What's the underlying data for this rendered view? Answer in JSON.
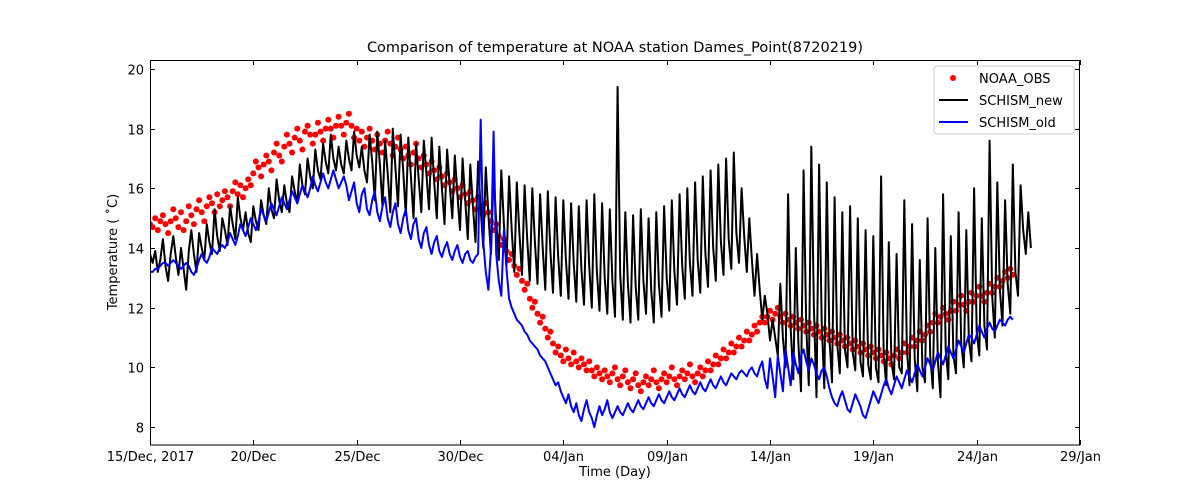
{
  "chart_data": {
    "type": "line",
    "title": "Comparison of temperature at NOAA station Dames_Point(8720219)",
    "xlabel": "Time (Day)",
    "ylabel": "Temperature ($^\\circ$C)",
    "ylabel_display": "Temperature ( ˚C)",
    "xlim": [
      0,
      45
    ],
    "ylim": [
      7.4,
      20.3
    ],
    "x_unit": "days since 15/Dec/2017",
    "grid": false,
    "legend_position": "top-right",
    "xticks": [
      {
        "value": 0,
        "label": "15/Dec, 2017"
      },
      {
        "value": 5,
        "label": "20/Dec"
      },
      {
        "value": 10,
        "label": "25/Dec"
      },
      {
        "value": 15,
        "label": "30/Dec"
      },
      {
        "value": 20,
        "label": "04/Jan"
      },
      {
        "value": 25,
        "label": "09/Jan"
      },
      {
        "value": 30,
        "label": "14/Jan"
      },
      {
        "value": 35,
        "label": "19/Jan"
      },
      {
        "value": 40,
        "label": "24/Jan"
      },
      {
        "value": 45,
        "label": "29/Jan"
      }
    ],
    "yticks": [
      {
        "value": 8,
        "label": "8"
      },
      {
        "value": 10,
        "label": "10"
      },
      {
        "value": 12,
        "label": "12"
      },
      {
        "value": 14,
        "label": "14"
      },
      {
        "value": 16,
        "label": "16"
      },
      {
        "value": 18,
        "label": "18"
      },
      {
        "value": 20,
        "label": "20"
      }
    ],
    "series": [
      {
        "name": "NOAA_OBS",
        "style": "scatter",
        "color": "#ff0000",
        "x_start": 0,
        "x_step": 0.125,
        "values": [
          14.8,
          14.7,
          15.0,
          14.6,
          14.9,
          15.1,
          14.8,
          14.5,
          14.9,
          15.3,
          15.0,
          14.7,
          15.2,
          14.6,
          14.9,
          15.4,
          15.1,
          14.8,
          15.3,
          15.6,
          15.2,
          14.9,
          15.4,
          15.7,
          15.5,
          15.2,
          15.8,
          15.4,
          15.6,
          15.9,
          15.7,
          15.4,
          15.9,
          16.2,
          15.8,
          16.1,
          15.7,
          16.0,
          16.3,
          16.1,
          16.5,
          16.9,
          16.7,
          16.4,
          16.8,
          17.1,
          16.9,
          16.6,
          17.2,
          17.5,
          17.1,
          16.9,
          17.4,
          17.8,
          17.5,
          17.2,
          17.7,
          18.0,
          17.6,
          17.3,
          17.9,
          18.1,
          17.8,
          17.5,
          17.8,
          18.2,
          17.9,
          17.6,
          18.0,
          18.3,
          18.0,
          17.7,
          18.1,
          18.4,
          18.1,
          17.8,
          18.2,
          18.5,
          18.1,
          17.7,
          18.0,
          17.6,
          17.9,
          17.4,
          17.7,
          18.0,
          17.6,
          17.3,
          17.8,
          17.5,
          17.2,
          17.6,
          17.9,
          17.5,
          17.1,
          17.4,
          17.7,
          17.3,
          17.0,
          17.4,
          17.1,
          16.8,
          17.2,
          17.5,
          17.0,
          16.7,
          17.1,
          16.8,
          16.5,
          16.9,
          16.6,
          16.3,
          16.7,
          16.4,
          16.1,
          16.5,
          16.2,
          15.9,
          16.3,
          16.0,
          15.7,
          16.1,
          15.8,
          15.5,
          15.9,
          15.6,
          15.3,
          15.7,
          15.4,
          15.1,
          15.5,
          15.2,
          14.9,
          14.6,
          14.8,
          14.4,
          14.1,
          14.3,
          13.9,
          13.6,
          13.8,
          13.4,
          13.1,
          13.3,
          12.9,
          12.6,
          12.8,
          12.3,
          12.0,
          12.2,
          11.8,
          11.5,
          11.7,
          11.3,
          11.0,
          11.2,
          10.8,
          10.5,
          10.7,
          10.4,
          10.2,
          10.6,
          10.3,
          10.1,
          10.5,
          10.2,
          10.0,
          10.3,
          10.1,
          9.9,
          10.2,
          9.9,
          9.7,
          10.0,
          9.8,
          9.6,
          9.9,
          9.7,
          9.5,
          9.8,
          10.0,
          9.6,
          9.4,
          9.7,
          9.9,
          9.5,
          9.3,
          9.6,
          9.8,
          9.4,
          9.2,
          9.5,
          9.7,
          9.4,
          9.6,
          9.9,
          9.5,
          9.3,
          9.6,
          9.8,
          9.5,
          9.7,
          10.0,
          9.6,
          9.4,
          9.7,
          9.9,
          9.6,
          9.8,
          10.1,
          9.7,
          9.5,
          9.8,
          10.0,
          9.7,
          9.9,
          10.2,
          9.9,
          10.1,
          10.4,
          10.1,
          10.3,
          10.6,
          10.3,
          10.5,
          10.8,
          10.5,
          10.7,
          11.0,
          10.7,
          10.9,
          11.2,
          10.9,
          11.1,
          11.4,
          11.2,
          11.5,
          11.7,
          11.5,
          11.7,
          11.9,
          11.6,
          11.8,
          12.0,
          11.7,
          11.5,
          11.8,
          11.6,
          11.4,
          11.7,
          11.5,
          11.3,
          11.6,
          11.4,
          11.2,
          11.5,
          11.3,
          11.1,
          11.4,
          11.2,
          11.0,
          11.3,
          11.1,
          10.9,
          11.2,
          11.0,
          10.8,
          11.1,
          10.9,
          10.7,
          11.0,
          10.8,
          10.6,
          10.9,
          10.7,
          10.5,
          10.8,
          10.6,
          10.4,
          10.7,
          10.5,
          10.3,
          10.6,
          10.4,
          10.2,
          10.5,
          10.3,
          10.1,
          10.4,
          10.6,
          10.3,
          10.5,
          10.8,
          10.5,
          10.7,
          11.0,
          10.7,
          10.9,
          11.2,
          10.9,
          11.1,
          11.4,
          11.2,
          11.5,
          11.8,
          11.5,
          11.7,
          12.0,
          11.8,
          11.6,
          11.9,
          12.2,
          11.9,
          12.1,
          12.4,
          12.1,
          11.9,
          12.2,
          12.5,
          12.2,
          12.4,
          12.7,
          12.4,
          12.2,
          12.5,
          12.8,
          12.5,
          12.7,
          13.0,
          12.7,
          12.9,
          13.2,
          13.0,
          13.3,
          13.1
        ],
        "note": "values sampled every 0.125 day from day 0"
      },
      {
        "name": "SCHISM_new",
        "style": "line",
        "color": "#000000",
        "x_start": 0,
        "x_step": 0.125,
        "values": [
          13.8,
          13.5,
          13.9,
          13.2,
          13.6,
          14.3,
          13.4,
          12.9,
          13.8,
          14.4,
          13.7,
          13.1,
          14.0,
          13.3,
          12.6,
          13.9,
          14.6,
          13.8,
          13.2,
          14.5,
          14.0,
          13.6,
          14.8,
          14.2,
          13.8,
          15.3,
          14.4,
          13.9,
          15.0,
          14.6,
          14.1,
          15.4,
          14.8,
          14.3,
          15.7,
          15.0,
          14.6,
          15.2,
          14.5,
          14.2,
          15.4,
          14.9,
          14.6,
          15.6,
          15.1,
          14.8,
          16.0,
          15.3,
          15.0,
          16.3,
          15.6,
          15.2,
          16.1,
          15.5,
          15.2,
          16.4,
          15.9,
          15.5,
          16.8,
          16.1,
          15.8,
          17.0,
          16.4,
          16.0,
          17.3,
          16.6,
          16.3,
          17.5,
          16.9,
          16.5,
          17.8,
          17.0,
          16.6,
          17.4,
          16.8,
          16.5,
          17.6,
          17.0,
          16.6,
          17.9,
          17.1,
          16.7,
          17.4,
          16.6,
          16.2,
          17.8,
          16.9,
          15.6,
          17.9,
          16.8,
          15.4,
          17.6,
          16.5,
          15.2,
          18.0,
          16.7,
          15.4,
          17.8,
          16.6,
          15.1,
          17.7,
          16.4,
          15.0,
          17.5,
          16.3,
          15.2,
          17.6,
          16.5,
          15.3,
          17.7,
          16.2,
          15.0,
          17.4,
          16.0,
          14.8,
          17.3,
          16.1,
          15.0,
          17.1,
          15.8,
          14.6,
          17.0,
          15.6,
          14.3,
          16.8,
          15.4,
          14.2,
          16.9,
          15.3,
          14.0,
          16.7,
          15.1,
          13.8,
          16.5,
          14.9,
          13.6,
          16.6,
          14.8,
          13.4,
          16.4,
          14.6,
          13.2,
          16.2,
          14.5,
          13.1,
          16.1,
          14.3,
          12.9,
          16.0,
          14.2,
          12.8,
          15.8,
          14.0,
          12.6,
          15.9,
          13.9,
          12.5,
          15.7,
          13.7,
          12.4,
          15.6,
          13.6,
          12.3,
          15.5,
          13.5,
          12.2,
          15.4,
          13.3,
          12.1,
          15.6,
          13.4,
          12.0,
          15.8,
          13.2,
          11.9,
          15.5,
          13.0,
          11.8,
          15.3,
          12.9,
          11.7,
          19.4,
          13.1,
          11.6,
          15.2,
          12.8,
          11.5,
          15.1,
          12.7,
          11.6,
          15.3,
          12.9,
          11.8,
          15.0,
          12.6,
          11.5,
          15.2,
          12.8,
          11.7,
          15.4,
          13.0,
          11.9,
          15.6,
          13.2,
          12.1,
          15.8,
          13.4,
          12.3,
          16.0,
          13.5,
          12.4,
          16.2,
          13.6,
          12.5,
          16.4,
          13.8,
          12.7,
          16.6,
          14.0,
          12.9,
          16.8,
          14.2,
          13.1,
          17.0,
          14.3,
          13.3,
          17.2,
          14.5,
          13.5,
          16.0,
          14.4,
          13.2,
          15.0,
          13.6,
          12.4,
          13.8,
          12.6,
          11.6,
          12.4,
          11.8,
          10.9,
          11.6,
          11.0,
          10.4,
          12.8,
          11.0,
          10.0,
          15.8,
          11.3,
          9.6,
          14.0,
          10.8,
          9.2,
          16.6,
          11.4,
          9.4,
          17.4,
          12.0,
          9.0,
          16.8,
          11.5,
          9.3,
          16.2,
          11.0,
          9.5,
          15.7,
          10.8,
          9.8,
          15.2,
          10.6,
          10.0,
          15.4,
          10.5,
          9.9,
          15.0,
          10.2,
          9.7,
          14.6,
          10.1,
          9.6,
          14.4,
          10.0,
          9.5,
          16.4,
          10.4,
          9.4,
          14.2,
          10.2,
          9.6,
          13.8,
          10.0,
          9.8,
          15.6,
          10.6,
          9.4,
          14.8,
          10.3,
          9.2,
          13.6,
          10.0,
          9.5,
          15.0,
          10.4,
          9.3,
          14.0,
          10.2,
          9.0,
          15.8,
          10.6,
          9.6,
          14.4,
          10.4,
          9.8,
          15.2,
          10.8,
          10.0,
          14.6,
          10.9,
          10.2,
          16.0,
          11.2,
          10.4,
          15.0,
          11.4,
          10.6,
          17.6,
          12.4,
          11.0,
          16.2,
          12.6,
          11.4,
          15.6,
          12.8,
          11.8,
          16.8,
          13.2,
          12.4,
          16.1,
          14.6,
          13.8,
          15.2,
          14.0
        ],
        "note": "values sampled every 0.125 day from day 0"
      },
      {
        "name": "SCHISM_old",
        "style": "line",
        "color": "#0000ff",
        "x_start": 0,
        "x_step": 0.125,
        "values": [
          13.2,
          13.2,
          13.3,
          13.3,
          13.4,
          13.5,
          13.5,
          13.4,
          13.5,
          13.6,
          13.5,
          13.4,
          13.3,
          13.4,
          13.5,
          13.4,
          13.2,
          13.1,
          13.3,
          13.6,
          13.8,
          13.6,
          13.5,
          13.7,
          14.0,
          13.9,
          13.8,
          14.0,
          14.1,
          14.0,
          14.2,
          14.5,
          14.3,
          14.1,
          14.4,
          14.8,
          14.6,
          14.4,
          14.7,
          15.0,
          14.8,
          14.6,
          14.9,
          15.3,
          15.1,
          14.9,
          15.2,
          15.5,
          15.3,
          15.1,
          15.4,
          15.7,
          15.5,
          15.3,
          15.6,
          15.9,
          15.7,
          15.5,
          15.8,
          16.1,
          15.9,
          15.7,
          16.0,
          16.4,
          16.1,
          15.9,
          16.2,
          16.5,
          16.2,
          16.0,
          16.3,
          16.6,
          16.3,
          16.0,
          16.2,
          16.4,
          16.1,
          15.6,
          15.9,
          16.2,
          15.5,
          15.2,
          15.8,
          16.0,
          15.3,
          15.1,
          15.6,
          15.9,
          15.2,
          14.9,
          15.4,
          15.7,
          15.0,
          14.7,
          15.2,
          15.5,
          14.8,
          14.5,
          15.0,
          15.3,
          14.6,
          14.3,
          14.8,
          15.0,
          14.3,
          14.0,
          14.5,
          14.7,
          14.1,
          13.8,
          14.2,
          14.4,
          13.9,
          13.7,
          14.0,
          14.2,
          13.8,
          13.6,
          13.9,
          14.1,
          13.7,
          13.5,
          13.8,
          13.9,
          13.6,
          13.5,
          13.7,
          13.8,
          18.3,
          14.2,
          13.2,
          12.6,
          14.0,
          17.9,
          13.8,
          12.9,
          12.4,
          14.6,
          13.3,
          12.3,
          12.0,
          11.8,
          11.6,
          11.5,
          11.4,
          11.2,
          11.1,
          10.9,
          10.8,
          10.7,
          10.6,
          10.4,
          10.3,
          10.2,
          10.0,
          9.8,
          9.6,
          9.4,
          9.5,
          9.2,
          9.0,
          8.8,
          9.1,
          8.7,
          8.5,
          8.8,
          8.4,
          8.2,
          8.6,
          8.9,
          8.5,
          8.3,
          8.0,
          8.4,
          8.7,
          8.4,
          8.6,
          8.9,
          8.5,
          8.3,
          8.5,
          8.7,
          8.5,
          8.4,
          8.6,
          8.8,
          8.6,
          8.5,
          8.7,
          8.9,
          8.7,
          8.6,
          8.8,
          9.0,
          8.8,
          8.7,
          8.9,
          9.1,
          8.9,
          8.8,
          9.0,
          9.2,
          9.0,
          8.9,
          9.1,
          9.3,
          9.1,
          9.0,
          9.2,
          9.4,
          9.2,
          9.1,
          9.3,
          9.5,
          9.3,
          9.2,
          9.4,
          9.6,
          9.4,
          9.3,
          9.5,
          9.7,
          9.5,
          9.4,
          9.6,
          9.8,
          9.7,
          9.6,
          9.8,
          9.9,
          9.8,
          9.7,
          9.9,
          10.0,
          9.8,
          9.7,
          10.0,
          10.2,
          9.6,
          9.3,
          10.3,
          9.7,
          9.0,
          10.4,
          9.8,
          9.2,
          10.6,
          10.0,
          9.4,
          10.5,
          10.1,
          9.8,
          10.4,
          10.6,
          10.2,
          9.9,
          10.3,
          10.1,
          9.8,
          9.6,
          9.9,
          10.0,
          9.7,
          9.3,
          9.0,
          8.8,
          8.7,
          9.0,
          9.2,
          8.9,
          8.6,
          8.5,
          8.8,
          9.1,
          8.9,
          8.7,
          8.4,
          8.3,
          8.6,
          8.9,
          9.2,
          9.0,
          8.8,
          9.1,
          9.4,
          9.6,
          9.3,
          9.1,
          9.4,
          9.7,
          9.5,
          9.3,
          9.6,
          9.9,
          9.7,
          9.5,
          9.8,
          10.1,
          9.9,
          9.7,
          10.0,
          10.3,
          10.1,
          9.9,
          10.2,
          10.5,
          10.3,
          10.1,
          10.4,
          10.7,
          10.5,
          10.3,
          10.6,
          10.9,
          10.7,
          10.5,
          10.8,
          11.1,
          11.0,
          10.8,
          11.1,
          11.4,
          11.2,
          11.0,
          11.3,
          11.5,
          11.3,
          11.2,
          11.4,
          11.6,
          11.5,
          11.4,
          11.6,
          11.7,
          11.6
        ],
        "note": "values sampled every 0.125 day from day 0"
      }
    ]
  }
}
